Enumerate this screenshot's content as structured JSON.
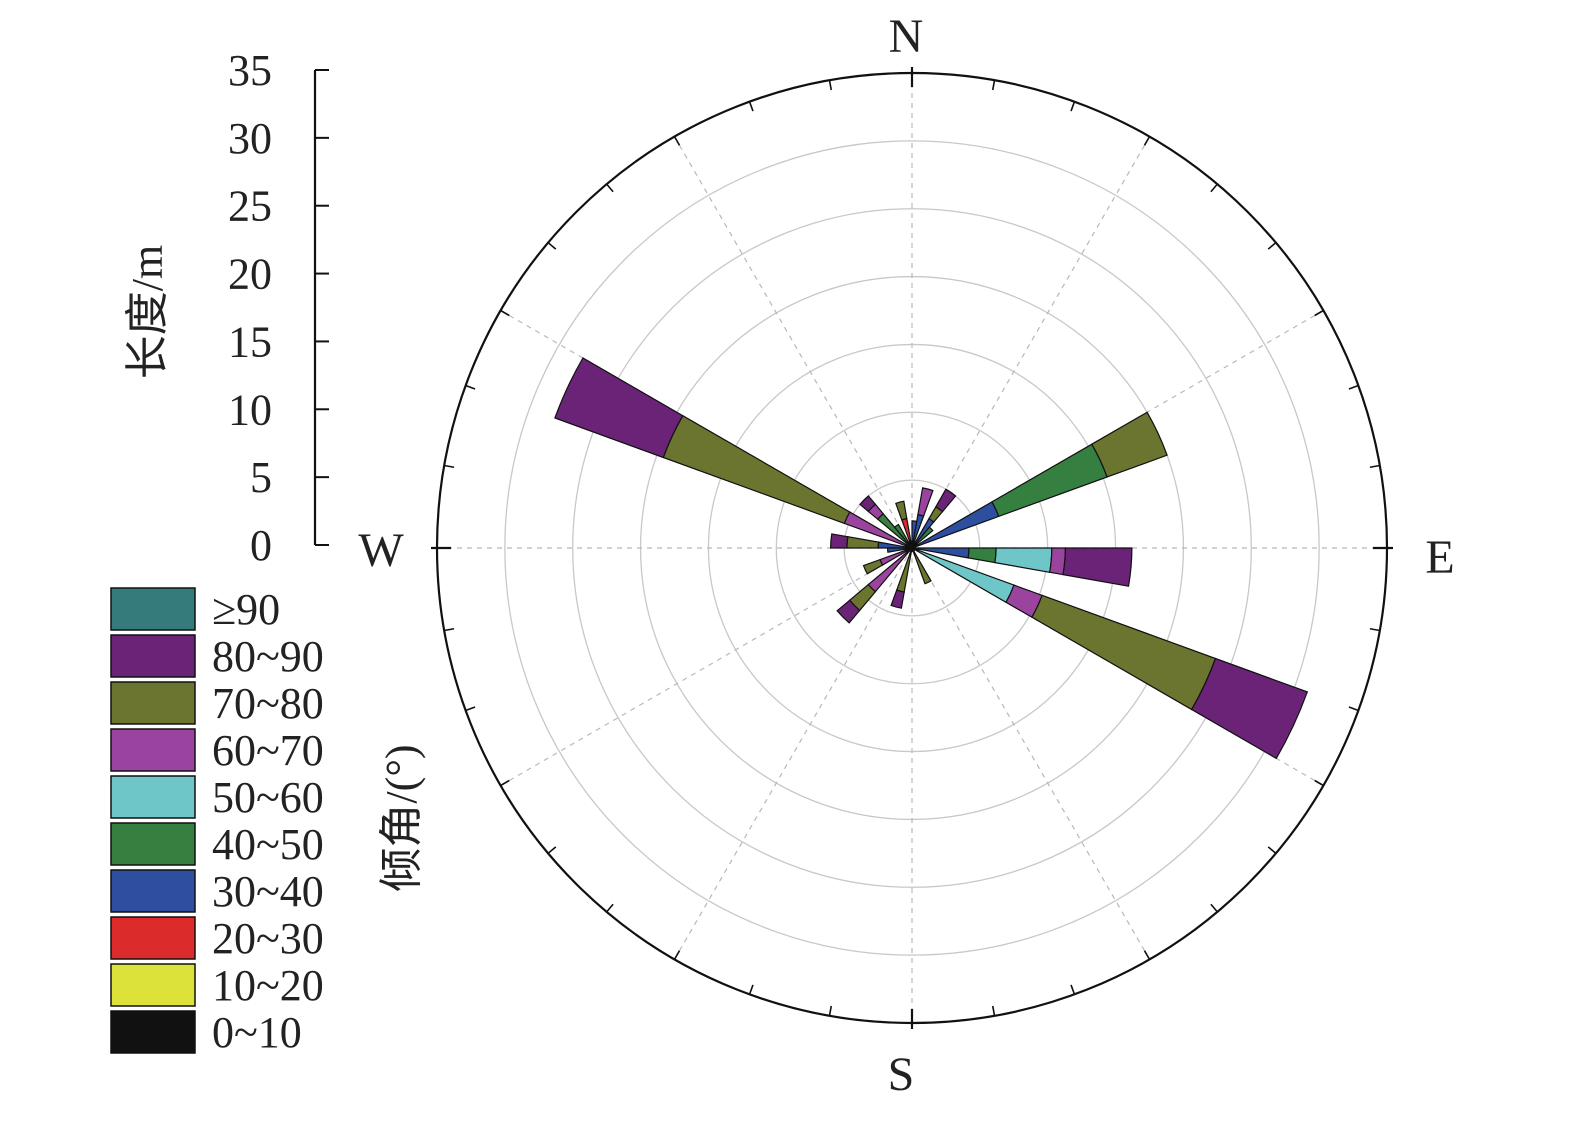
{
  "chart_data": {
    "type": "rose",
    "title": "",
    "ylabel": "长度/m",
    "yticks": [
      "0",
      "5",
      "10",
      "15",
      "20",
      "25",
      "30",
      "35"
    ],
    "ylim": [
      0,
      35
    ],
    "compass": {
      "N": "N",
      "E": "E",
      "S": "S",
      "W": "W"
    },
    "grid": true,
    "sector_width_deg": 10,
    "legend": {
      "title": "倾角/(°)",
      "placement": "left",
      "items": [
        {
          "label": "≥90",
          "color": "#357b7b"
        },
        {
          "label": "80~90",
          "color": "#6b2378"
        },
        {
          "label": "70~80",
          "color": "#6b7530"
        },
        {
          "label": "60~70",
          "color": "#9a44a0"
        },
        {
          "label": "50~60",
          "color": "#6ec6c8"
        },
        {
          "label": "40~50",
          "color": "#357f40"
        },
        {
          "label": "30~40",
          "color": "#2e4ea0"
        },
        {
          "label": "20~30",
          "color": "#dc2b2b"
        },
        {
          "label": "10~20",
          "color": "#dce23a"
        },
        {
          "label": "0~10",
          "color": "#111111"
        }
      ]
    },
    "sectors": [
      {
        "azimuth": 295,
        "stack": [
          {
            "dip": "0~10",
            "len": 0.5
          },
          {
            "dip": "60~70",
            "len": 5.3
          },
          {
            "dip": "70~80",
            "len": 19.5
          },
          {
            "dip": "80~90",
            "len": 28.0
          }
        ]
      },
      {
        "azimuth": 115,
        "stack": [
          {
            "dip": "0~10",
            "len": 0.5
          },
          {
            "dip": "50~60",
            "len": 8.0
          },
          {
            "dip": "60~70",
            "len": 10.2
          },
          {
            "dip": "70~80",
            "len": 23.8
          },
          {
            "dip": "80~90",
            "len": 31.0
          }
        ]
      },
      {
        "azimuth": 65,
        "stack": [
          {
            "dip": "0~10",
            "len": 0.5
          },
          {
            "dip": "30~40",
            "len": 6.8
          },
          {
            "dip": "40~50",
            "len": 15.3
          },
          {
            "dip": "70~80",
            "len": 20.0
          }
        ]
      },
      {
        "azimuth": 95,
        "stack": [
          {
            "dip": "0~10",
            "len": 0.5
          },
          {
            "dip": "30~40",
            "len": 4.2
          },
          {
            "dip": "40~50",
            "len": 6.2
          },
          {
            "dip": "50~60",
            "len": 10.3
          },
          {
            "dip": "60~70",
            "len": 11.3
          },
          {
            "dip": "80~90",
            "len": 16.2
          }
        ]
      },
      {
        "azimuth": 275,
        "stack": [
          {
            "dip": "0~10",
            "len": 0.5
          },
          {
            "dip": "30~40",
            "len": 2.5
          },
          {
            "dip": "70~80",
            "len": 4.8
          },
          {
            "dip": "80~90",
            "len": 6.0
          }
        ]
      },
      {
        "azimuth": 225,
        "stack": [
          {
            "dip": "0~10",
            "len": 0.5
          },
          {
            "dip": "60~70",
            "len": 4.2
          },
          {
            "dip": "70~80",
            "len": 6.0
          },
          {
            "dip": "80~90",
            "len": 7.2
          }
        ]
      },
      {
        "azimuth": 315,
        "stack": [
          {
            "dip": "0~10",
            "len": 0.5
          },
          {
            "dip": "40~50",
            "len": 3.3
          },
          {
            "dip": "60~70",
            "len": 4.2
          },
          {
            "dip": "80~90",
            "len": 5.0
          }
        ]
      },
      {
        "azimuth": 35,
        "stack": [
          {
            "dip": "0~10",
            "len": 0.5
          },
          {
            "dip": "30~40",
            "len": 2.5
          },
          {
            "dip": "70~80",
            "len": 3.5
          },
          {
            "dip": "80~90",
            "len": 5.0
          }
        ]
      },
      {
        "azimuth": 15,
        "stack": [
          {
            "dip": "0~10",
            "len": 0.5
          },
          {
            "dip": "30~40",
            "len": 2.5
          },
          {
            "dip": "60~70",
            "len": 4.5
          }
        ]
      },
      {
        "azimuth": 345,
        "stack": [
          {
            "dip": "0~10",
            "len": 0.5
          },
          {
            "dip": "20~30",
            "len": 2.2
          },
          {
            "dip": "70~80",
            "len": 3.5
          }
        ]
      },
      {
        "azimuth": 5,
        "stack": [
          {
            "dip": "0~10",
            "len": 0.5
          },
          {
            "dip": "30~40",
            "len": 2.0
          }
        ]
      },
      {
        "azimuth": 195,
        "stack": [
          {
            "dip": "0~10",
            "len": 0.5
          },
          {
            "dip": "70~80",
            "len": 3.3
          },
          {
            "dip": "80~90",
            "len": 4.5
          }
        ]
      },
      {
        "azimuth": 245,
        "stack": [
          {
            "dip": "0~10",
            "len": 0.5
          },
          {
            "dip": "60~70",
            "len": 2.5
          },
          {
            "dip": "70~80",
            "len": 3.8
          }
        ]
      },
      {
        "azimuth": 155,
        "stack": [
          {
            "dip": "0~10",
            "len": 0.5
          },
          {
            "dip": "70~80",
            "len": 2.8
          }
        ]
      },
      {
        "azimuth": 265,
        "stack": [
          {
            "dip": "0~10",
            "len": 0.5
          },
          {
            "dip": "30~40",
            "len": 1.8
          }
        ]
      },
      {
        "azimuth": 325,
        "stack": [
          {
            "dip": "0~10",
            "len": 0.5
          },
          {
            "dip": "40~50",
            "len": 2.0
          }
        ]
      },
      {
        "azimuth": 45,
        "stack": [
          {
            "dip": "0~10",
            "len": 0.5
          },
          {
            "dip": "40~50",
            "len": 2.0
          }
        ]
      }
    ]
  }
}
